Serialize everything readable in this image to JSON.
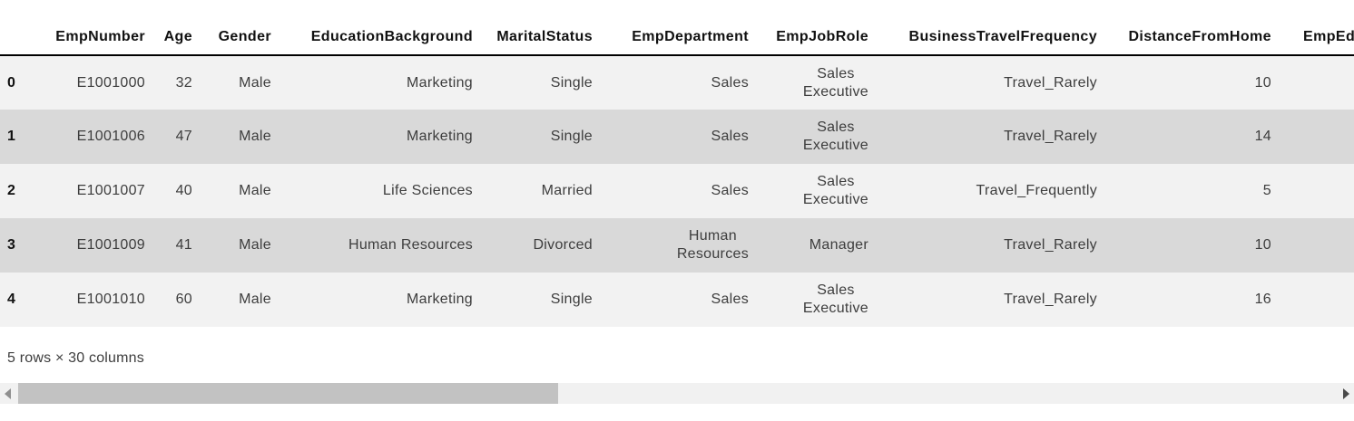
{
  "table": {
    "columns": [
      "",
      "EmpNumber",
      "Age",
      "Gender",
      "EducationBackground",
      "MaritalStatus",
      "EmpDepartment",
      "EmpJobRole",
      "BusinessTravelFrequency",
      "DistanceFromHome",
      "EmpEducationL"
    ],
    "rows": [
      {
        "index": "0",
        "cells": [
          "E1001000",
          "32",
          "Male",
          "Marketing",
          "Single",
          "Sales",
          "Sales\nExecutive",
          "Travel_Rarely",
          "10",
          ""
        ]
      },
      {
        "index": "1",
        "cells": [
          "E1001006",
          "47",
          "Male",
          "Marketing",
          "Single",
          "Sales",
          "Sales\nExecutive",
          "Travel_Rarely",
          "14",
          ""
        ]
      },
      {
        "index": "2",
        "cells": [
          "E1001007",
          "40",
          "Male",
          "Life Sciences",
          "Married",
          "Sales",
          "Sales\nExecutive",
          "Travel_Frequently",
          "5",
          ""
        ]
      },
      {
        "index": "3",
        "cells": [
          "E1001009",
          "41",
          "Male",
          "Human Resources",
          "Divorced",
          "Human\nResources",
          "Manager",
          "Travel_Rarely",
          "10",
          ""
        ]
      },
      {
        "index": "4",
        "cells": [
          "E1001010",
          "60",
          "Male",
          "Marketing",
          "Single",
          "Sales",
          "Sales\nExecutive",
          "Travel_Rarely",
          "16",
          ""
        ]
      }
    ]
  },
  "footer": {
    "shape_text": "5 rows × 30 columns"
  },
  "scrollbar": {
    "left_icon": "triangle-left",
    "right_icon": "triangle-right"
  },
  "colors": {
    "row_light": "#f2f2f2",
    "row_dark": "#d9d9d9",
    "header_border": "#000000",
    "scroll_track": "#f1f1f1",
    "scroll_thumb": "#c2c2c2",
    "text_primary": "#111111",
    "text_cell": "#3d3d3d"
  }
}
